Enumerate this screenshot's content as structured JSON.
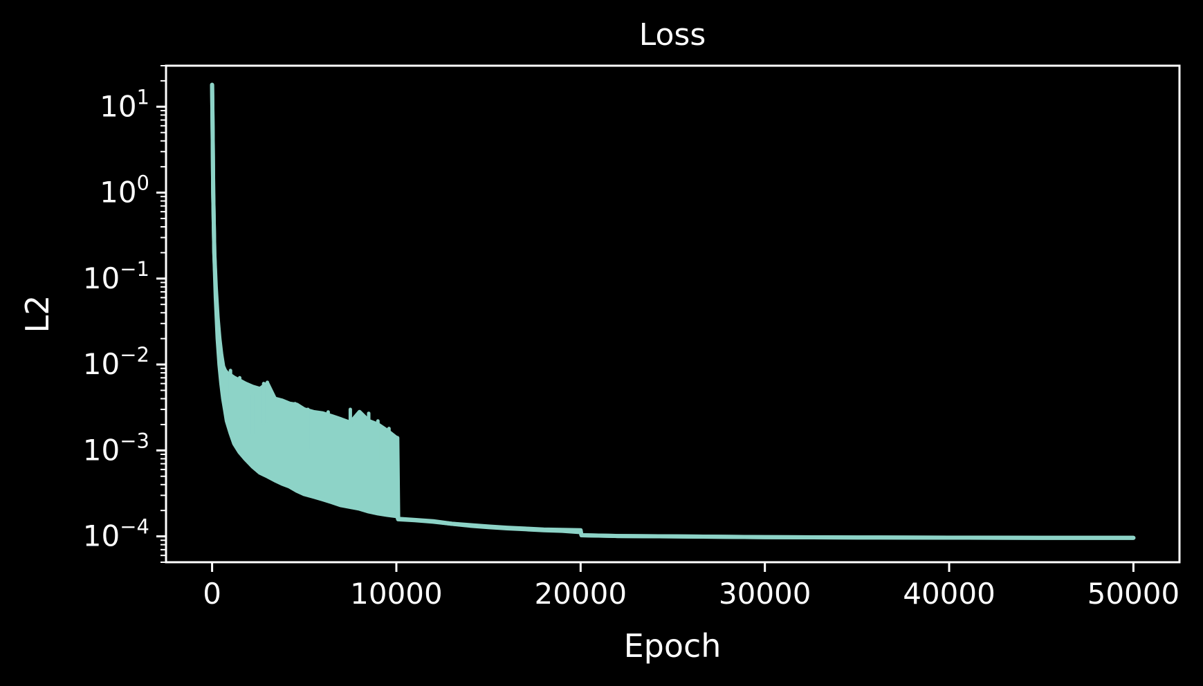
{
  "colors": {
    "background": "#000000",
    "axes": "#ffffff",
    "text": "#ffffff",
    "line": "#8dd3c7"
  },
  "chart_data": {
    "type": "line",
    "title": "Loss",
    "xlabel": "Epoch",
    "ylabel": "L2",
    "xlim": [
      -2500,
      52500
    ],
    "ylim": [
      5e-05,
      30
    ],
    "yscale": "log",
    "grid": false,
    "x_ticks": [
      0,
      10000,
      20000,
      30000,
      40000,
      50000
    ],
    "x_tick_labels": [
      "0",
      "10000",
      "20000",
      "30000",
      "40000",
      "50000"
    ],
    "y_ticks": [
      {
        "value": 10,
        "base": "10",
        "exp": "1"
      },
      {
        "value": 1,
        "base": "10",
        "exp": "0"
      },
      {
        "value": 0.1,
        "base": "10",
        "exp": "−1"
      },
      {
        "value": 0.01,
        "base": "10",
        "exp": "−2"
      },
      {
        "value": 0.001,
        "base": "10",
        "exp": "−3"
      },
      {
        "value": 0.0001,
        "base": "10",
        "exp": "−4"
      }
    ],
    "series": [
      {
        "upper": {
          "x": [
            0,
            30,
            60,
            120,
            200,
            300,
            400,
            500,
            600,
            700,
            800,
            1000,
            1200,
            1500,
            1800,
            2200,
            2600,
            3000,
            3400,
            3800,
            4200,
            4600,
            5000,
            5500,
            6000,
            6500,
            7000,
            7500,
            8000,
            8500,
            9000,
            9500,
            10000,
            10050,
            10100,
            11000,
            12000,
            13000,
            14000,
            15000,
            16000,
            17000,
            18000,
            19000,
            20000,
            20050,
            22000,
            25000,
            30000,
            35000,
            40000,
            45000,
            50000
          ],
          "y": [
            18,
            5,
            1,
            0.2,
            0.08,
            0.035,
            0.02,
            0.013,
            0.0095,
            0.0085,
            0.008,
            0.0075,
            0.007,
            0.0065,
            0.006,
            0.0055,
            0.0052,
            0.006,
            0.004,
            0.0038,
            0.0035,
            0.0034,
            0.003,
            0.0028,
            0.0027,
            0.0025,
            0.0023,
            0.0021,
            0.0028,
            0.0022,
            0.002,
            0.0017,
            0.0014,
            0.0014,
            0.00016,
            0.000155,
            0.00015,
            0.00014,
            0.000135,
            0.00013,
            0.000126,
            0.000123,
            0.00012,
            0.000119,
            0.000118,
            0.000103,
            0.000101,
            0.0001,
            9.8e-05,
            9.7e-05,
            9.65e-05,
            9.62e-05,
            9.6e-05
          ]
        },
        "lower": {
          "x": [
            0,
            30,
            60,
            120,
            200,
            300,
            400,
            500,
            600,
            700,
            800,
            1000,
            1200,
            1500,
            1800,
            2200,
            2600,
            3000,
            3400,
            3800,
            4200,
            4600,
            5000,
            5500,
            6000,
            6500,
            7000,
            7500,
            8000,
            8500,
            9000,
            9500,
            10000,
            10050,
            10100,
            11000,
            12000,
            13000,
            14000,
            15000,
            16000,
            17000,
            18000,
            19000,
            20000,
            20050,
            22000,
            25000,
            30000,
            35000,
            40000,
            45000,
            50000
          ],
          "y": [
            18,
            5,
            1,
            0.2,
            0.06,
            0.02,
            0.01,
            0.006,
            0.004,
            0.003,
            0.0022,
            0.0016,
            0.0012,
            0.00095,
            0.0008,
            0.00065,
            0.00055,
            0.0005,
            0.00045,
            0.00041,
            0.00038,
            0.00034,
            0.00031,
            0.00029,
            0.00027,
            0.00025,
            0.00023,
            0.00022,
            0.00021,
            0.000195,
            0.000185,
            0.000178,
            0.000172,
            0.00017,
            0.000158,
            0.000154,
            0.000148,
            0.00014,
            0.000133,
            0.000128,
            0.000124,
            0.000121,
            0.000118,
            0.000116,
            0.000112,
            0.000103,
            0.000101,
            0.0001,
            9.8e-05,
            9.7e-05,
            9.65e-05,
            9.62e-05,
            9.6e-05
          ]
        },
        "spikes": [
          {
            "x": 1000,
            "y": 0.0085
          },
          {
            "x": 1500,
            "y": 0.007
          },
          {
            "x": 2200,
            "y": 0.0045
          },
          {
            "x": 2800,
            "y": 0.006
          },
          {
            "x": 3000,
            "y": 0.0062
          },
          {
            "x": 3600,
            "y": 0.0038
          },
          {
            "x": 4500,
            "y": 0.0035
          },
          {
            "x": 5200,
            "y": 0.003
          },
          {
            "x": 6300,
            "y": 0.0028
          },
          {
            "x": 7500,
            "y": 0.003
          },
          {
            "x": 8500,
            "y": 0.0027
          },
          {
            "x": 9000,
            "y": 0.0022
          },
          {
            "x": 9600,
            "y": 0.0018
          }
        ]
      }
    ]
  }
}
